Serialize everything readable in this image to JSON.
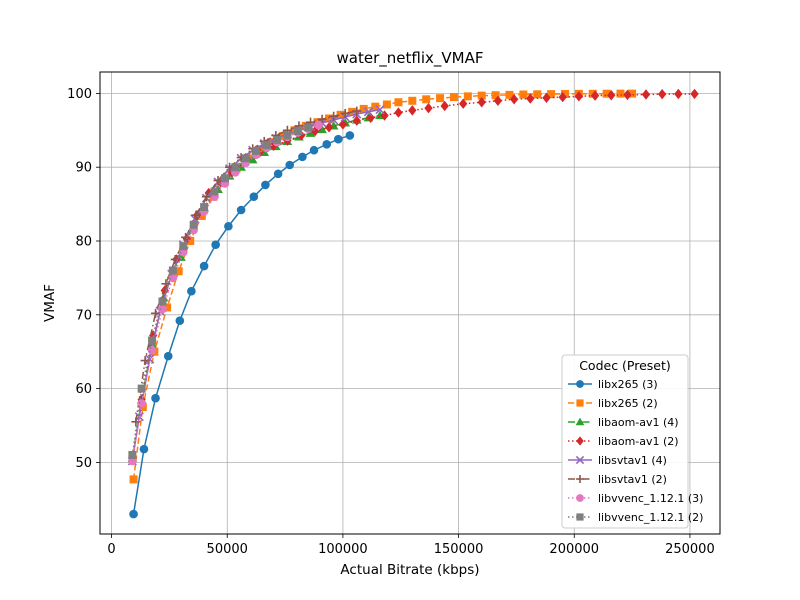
{
  "chart_data": {
    "type": "line",
    "title": "water_netflix_VMAF",
    "xlabel": "Actual Bitrate (kbps)",
    "ylabel": "VMAF",
    "xlim": [
      -5000,
      263000
    ],
    "ylim": [
      40.3,
      102.9
    ],
    "xticks": [
      0,
      50000,
      100000,
      150000,
      200000,
      250000
    ],
    "yticks": [
      50,
      60,
      70,
      80,
      90,
      100
    ],
    "grid": true,
    "legend": {
      "title": "Codec (Preset)",
      "placement": "lower-right"
    },
    "series": [
      {
        "name": "libx265 (3)",
        "color": "#1f77b4",
        "marker": "circle",
        "dash": "solid",
        "points": [
          [
            9500,
            43.0
          ],
          [
            14000,
            51.8
          ],
          [
            19000,
            58.7
          ],
          [
            24500,
            64.4
          ],
          [
            29500,
            69.2
          ],
          [
            34500,
            73.2
          ],
          [
            40000,
            76.6
          ],
          [
            45000,
            79.5
          ],
          [
            50500,
            82.0
          ],
          [
            56000,
            84.2
          ],
          [
            61500,
            86.0
          ],
          [
            66500,
            87.6
          ],
          [
            72000,
            89.1
          ],
          [
            77000,
            90.3
          ],
          [
            82500,
            91.4
          ],
          [
            87500,
            92.3
          ],
          [
            93000,
            93.1
          ],
          [
            98000,
            93.8
          ],
          [
            103000,
            94.3
          ]
        ]
      },
      {
        "name": "libx265 (2)",
        "color": "#ff7f0e",
        "marker": "square",
        "dash": "dashed",
        "points": [
          [
            9500,
            47.7
          ],
          [
            13500,
            57.5
          ],
          [
            18500,
            65.0
          ],
          [
            24000,
            71.0
          ],
          [
            29000,
            75.9
          ],
          [
            34000,
            80.0
          ],
          [
            39000,
            83.4
          ],
          [
            44000,
            86.0
          ],
          [
            49000,
            88.1
          ],
          [
            54000,
            89.8
          ],
          [
            59000,
            91.2
          ],
          [
            64000,
            92.4
          ],
          [
            69000,
            93.4
          ],
          [
            74000,
            94.2
          ],
          [
            79000,
            95.0
          ],
          [
            84000,
            95.6
          ],
          [
            89000,
            96.1
          ],
          [
            94000,
            96.6
          ],
          [
            99000,
            97.1
          ],
          [
            104000,
            97.5
          ],
          [
            109000,
            97.9
          ],
          [
            114000,
            98.2
          ],
          [
            119000,
            98.5
          ],
          [
            124000,
            98.8
          ],
          [
            130000,
            99.0
          ],
          [
            136000,
            99.2
          ],
          [
            142000,
            99.35
          ],
          [
            148000,
            99.5
          ],
          [
            154000,
            99.6
          ],
          [
            160000,
            99.7
          ],
          [
            166000,
            99.75
          ],
          [
            172000,
            99.8
          ],
          [
            178000,
            99.85
          ],
          [
            184000,
            99.88
          ],
          [
            190000,
            99.9
          ],
          [
            196000,
            99.92
          ],
          [
            202000,
            99.94
          ],
          [
            208000,
            99.95
          ],
          [
            214000,
            99.96
          ],
          [
            220000,
            99.97
          ],
          [
            225000,
            99.97
          ]
        ]
      },
      {
        "name": "libaom-av1 (4)",
        "color": "#2ca02c",
        "marker": "triangle",
        "dash": "dashdot",
        "points": [
          [
            9000,
            50.5
          ],
          [
            13000,
            58.5
          ],
          [
            17500,
            66.0
          ],
          [
            22500,
            72.3
          ],
          [
            26000,
            75.5
          ],
          [
            30000,
            77.8
          ],
          [
            34500,
            81.5
          ],
          [
            40000,
            84.5
          ],
          [
            46000,
            87.0
          ],
          [
            51000,
            88.8
          ],
          [
            56000,
            90.0
          ],
          [
            61000,
            91.0
          ],
          [
            66000,
            92.0
          ],
          [
            71000,
            92.8
          ],
          [
            76000,
            93.5
          ],
          [
            81000,
            94.1
          ],
          [
            86000,
            94.6
          ],
          [
            91000,
            95.1
          ],
          [
            96000,
            95.6
          ],
          [
            101000,
            96.0
          ],
          [
            106000,
            96.4
          ],
          [
            111000,
            96.7
          ],
          [
            116000,
            97.0
          ]
        ]
      },
      {
        "name": "libaom-av1 (2)",
        "color": "#d62728",
        "marker": "diamond",
        "dash": "dotted",
        "points": [
          [
            13000,
            58.5
          ],
          [
            18000,
            67.2
          ],
          [
            23000,
            73.3
          ],
          [
            28000,
            77.5
          ],
          [
            32500,
            80.3
          ],
          [
            37000,
            83.5
          ],
          [
            42000,
            86.5
          ],
          [
            47000,
            88.0
          ],
          [
            52000,
            89.3
          ],
          [
            58000,
            90.8
          ],
          [
            64000,
            92.0
          ],
          [
            70000,
            92.9
          ],
          [
            76000,
            93.6
          ],
          [
            82000,
            94.3
          ],
          [
            88000,
            94.9
          ],
          [
            94000,
            95.4
          ],
          [
            100000,
            95.8
          ],
          [
            106000,
            96.3
          ],
          [
            112000,
            96.7
          ],
          [
            118000,
            97.0
          ],
          [
            124000,
            97.4
          ],
          [
            130000,
            97.7
          ],
          [
            137000,
            98.0
          ],
          [
            144000,
            98.3
          ],
          [
            152000,
            98.6
          ],
          [
            160000,
            98.8
          ],
          [
            167000,
            99.0
          ],
          [
            174000,
            99.2
          ],
          [
            181000,
            99.3
          ],
          [
            188000,
            99.4
          ],
          [
            195000,
            99.5
          ],
          [
            202000,
            99.6
          ],
          [
            209000,
            99.7
          ],
          [
            216000,
            99.75
          ],
          [
            223000,
            99.8
          ],
          [
            231000,
            99.85
          ],
          [
            238000,
            99.9
          ],
          [
            245000,
            99.92
          ],
          [
            252000,
            99.93
          ]
        ]
      },
      {
        "name": "libsvtav1 (4)",
        "color": "#9467bd",
        "marker": "x",
        "dash": "solid",
        "points": [
          [
            9000,
            50.2
          ],
          [
            12000,
            56.2
          ],
          [
            16500,
            64.0
          ],
          [
            21000,
            70.5
          ],
          [
            26000,
            75.5
          ],
          [
            31000,
            79.5
          ],
          [
            36000,
            83.0
          ],
          [
            41000,
            85.8
          ],
          [
            46000,
            88.0
          ],
          [
            51000,
            89.8
          ],
          [
            56000,
            91.2
          ],
          [
            61000,
            92.3
          ],
          [
            66000,
            93.2
          ],
          [
            71000,
            93.9
          ],
          [
            76000,
            94.5
          ],
          [
            81000,
            95.0
          ],
          [
            86000,
            95.5
          ],
          [
            91000,
            96.0
          ],
          [
            96000,
            96.4
          ],
          [
            101000,
            96.8
          ],
          [
            106000,
            97.2
          ],
          [
            111000,
            97.5
          ],
          [
            116000,
            97.8
          ]
        ]
      },
      {
        "name": "libsvtav1 (2)",
        "color": "#8c564b",
        "marker": "plus",
        "dash": "dashdot",
        "points": [
          [
            10500,
            55.5
          ],
          [
            14500,
            63.8
          ],
          [
            19000,
            70.2
          ],
          [
            23500,
            74.2
          ],
          [
            27500,
            77.5
          ],
          [
            32000,
            80.5
          ],
          [
            36500,
            83.5
          ],
          [
            41000,
            86.0
          ],
          [
            46000,
            88.2
          ],
          [
            51000,
            90.0
          ],
          [
            56000,
            91.3
          ],
          [
            61000,
            92.5
          ],
          [
            66000,
            93.5
          ],
          [
            71000,
            94.3
          ],
          [
            76000,
            95.0
          ],
          [
            81000,
            95.6
          ],
          [
            86000,
            96.1
          ],
          [
            91000,
            96.5
          ],
          [
            96000,
            96.9
          ],
          [
            101000,
            97.3
          ],
          [
            106000,
            97.6
          ]
        ]
      },
      {
        "name": "libvvenc_1.12.1 (3)",
        "color": "#e377c2",
        "marker": "circle",
        "dash": "dotted",
        "points": [
          [
            9000,
            50.2
          ],
          [
            13000,
            58.0
          ],
          [
            17500,
            65.2
          ],
          [
            22000,
            70.8
          ],
          [
            26500,
            75.0
          ],
          [
            31000,
            78.5
          ],
          [
            35500,
            81.5
          ],
          [
            40000,
            84.0
          ],
          [
            44500,
            86.0
          ],
          [
            49000,
            87.8
          ],
          [
            53500,
            89.3
          ],
          [
            58000,
            90.6
          ],
          [
            62500,
            91.7
          ],
          [
            67000,
            92.6
          ],
          [
            71500,
            93.4
          ],
          [
            76000,
            94.1
          ],
          [
            80500,
            94.7
          ],
          [
            85000,
            95.2
          ],
          [
            89500,
            95.7
          ]
        ]
      },
      {
        "name": "libvvenc_1.12.1 (2)",
        "color": "#7f7f7f",
        "marker": "square",
        "dash": "dotted",
        "points": [
          [
            9000,
            51.0
          ],
          [
            13000,
            60.0
          ],
          [
            17500,
            66.5
          ],
          [
            22000,
            71.8
          ],
          [
            26500,
            76.0
          ],
          [
            31000,
            79.3
          ],
          [
            35500,
            82.2
          ],
          [
            40000,
            84.6
          ],
          [
            44500,
            86.7
          ],
          [
            49000,
            88.5
          ],
          [
            53500,
            90.0
          ],
          [
            58000,
            91.2
          ],
          [
            62500,
            92.2
          ],
          [
            67000,
            93.0
          ],
          [
            71500,
            93.7
          ],
          [
            76000,
            94.3
          ],
          [
            80500,
            94.9
          ],
          [
            85000,
            95.4
          ]
        ]
      }
    ]
  }
}
